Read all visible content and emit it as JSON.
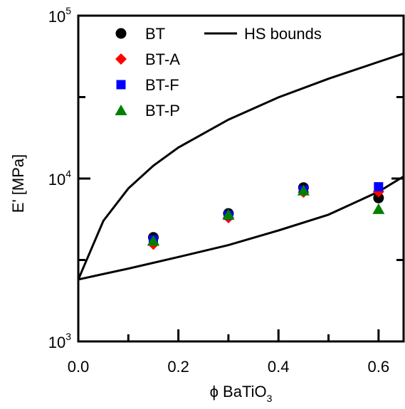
{
  "chart_data": {
    "type": "scatter",
    "xlabel": "ϕ BaTiO",
    "xlabel_sub": "3",
    "ylabel": "E' [MPa]",
    "xlim": [
      0,
      0.65
    ],
    "ylim": [
      1000,
      100000
    ],
    "yscale": "log",
    "grid": false,
    "legend_position": "top-left",
    "x_ticks": [
      0.0,
      0.2,
      0.4,
      0.6
    ],
    "x_tick_labels": [
      "0.0",
      "0.2",
      "0.4",
      "0.6"
    ],
    "y_ticks": [
      1000,
      10000,
      100000
    ],
    "y_tick_labels": [
      {
        "base": "10",
        "exp": "3"
      },
      {
        "base": "10",
        "exp": "4"
      },
      {
        "base": "10",
        "exp": "5"
      }
    ],
    "series": [
      {
        "name": "BT",
        "marker": "circle",
        "color": "#000000",
        "points": [
          [
            0.15,
            4350
          ],
          [
            0.3,
            6100
          ],
          [
            0.45,
            8800
          ],
          [
            0.6,
            7600
          ]
        ]
      },
      {
        "name": "BT-A",
        "marker": "diamond",
        "color": "#ff0000",
        "points": [
          [
            0.15,
            3950
          ],
          [
            0.3,
            5750
          ],
          [
            0.45,
            8250
          ],
          [
            0.6,
            8300
          ]
        ]
      },
      {
        "name": "BT-F",
        "marker": "square",
        "color": "#0000ff",
        "points": [
          [
            0.15,
            4200
          ],
          [
            0.3,
            5950
          ],
          [
            0.45,
            8500
          ],
          [
            0.6,
            8900
          ]
        ]
      },
      {
        "name": "BT-P",
        "marker": "triangle",
        "color": "#008000",
        "points": [
          [
            0.15,
            4150
          ],
          [
            0.3,
            6000
          ],
          [
            0.45,
            8450
          ],
          [
            0.6,
            6500
          ]
        ]
      }
    ],
    "lines": [
      {
        "name": "HS bounds",
        "color": "#000000",
        "points": [
          [
            0,
            2400
          ],
          [
            0.05,
            5500
          ],
          [
            0.1,
            8700
          ],
          [
            0.15,
            12000
          ],
          [
            0.2,
            15500
          ],
          [
            0.3,
            23000
          ],
          [
            0.4,
            31500
          ],
          [
            0.5,
            41000
          ],
          [
            0.6,
            52000
          ],
          [
            0.65,
            58500
          ]
        ]
      },
      {
        "name": "",
        "color": "#000000",
        "points": [
          [
            0,
            2400
          ],
          [
            0.1,
            2800
          ],
          [
            0.2,
            3300
          ],
          [
            0.3,
            3900
          ],
          [
            0.4,
            4800
          ],
          [
            0.5,
            6000
          ],
          [
            0.6,
            8300
          ],
          [
            0.65,
            10300
          ]
        ]
      }
    ],
    "legend": {
      "items": [
        {
          "label": "BT",
          "marker": "circle",
          "color": "#000000"
        },
        {
          "label": "BT-A",
          "marker": "diamond",
          "color": "#ff0000"
        },
        {
          "label": "BT-F",
          "marker": "square",
          "color": "#0000ff"
        },
        {
          "label": "BT-P",
          "marker": "triangle",
          "color": "#008000"
        }
      ],
      "line_item": {
        "label": "HS bounds"
      }
    }
  }
}
